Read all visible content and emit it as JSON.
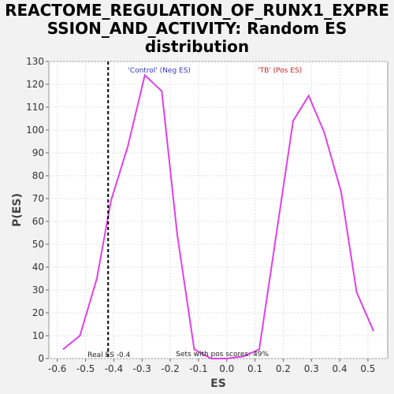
{
  "chart_data": {
    "type": "line",
    "title_lines": [
      "REACTOME_REGULATION_OF_RUNX1_EXPRE",
      "SSION_AND_ACTIVITY: Random ES",
      "distribution"
    ],
    "xlabel": "ES",
    "ylabel": "P(ES)",
    "xlim": [
      -0.63,
      0.57
    ],
    "ylim": [
      0,
      130
    ],
    "xticks": [
      -0.6,
      -0.5,
      -0.4,
      -0.3,
      -0.2,
      -0.1,
      0.0,
      0.1,
      0.2,
      0.3,
      0.4,
      0.5
    ],
    "xtick_labels": [
      "-0.6",
      "-0.5",
      "-0.4",
      "-0.3",
      "-0.2",
      "-0.1",
      "0.0",
      "0.1",
      "0.2",
      "0.3",
      "0.4",
      "0.5"
    ],
    "yticks": [
      0,
      10,
      20,
      30,
      40,
      50,
      60,
      70,
      80,
      90,
      100,
      110,
      120,
      130
    ],
    "ytick_labels": [
      "0",
      "10",
      "20",
      "30",
      "40",
      "50",
      "60",
      "70",
      "80",
      "90",
      "100",
      "110",
      "120",
      "130"
    ],
    "grid": true,
    "series": [
      {
        "color": "#e040e8",
        "x": [
          -0.58,
          -0.52,
          -0.46,
          -0.41,
          -0.35,
          -0.29,
          -0.23,
          -0.175,
          -0.115,
          -0.055,
          0.0,
          0.06,
          0.115,
          0.175,
          0.235,
          0.29,
          0.345,
          0.405,
          0.46,
          0.52
        ],
        "y": [
          4,
          10,
          35,
          69,
          93,
          124,
          117,
          54,
          4,
          0,
          0,
          1,
          4,
          54,
          104,
          115,
          99,
          73,
          29,
          12
        ]
      }
    ],
    "real_es_line": {
      "x": -0.42,
      "label": "Real ES -0.4"
    },
    "annotations": {
      "neg_label": "'Control' (Neg ES)",
      "pos_label": "'TB' (Pos ES)",
      "pos_scores_label": "Sets with pos scores: 49%"
    },
    "colors": {
      "line": "#e040e8",
      "neg_label": "#3333cc",
      "pos_label": "#cc2222",
      "grid": "#e0e0e0",
      "plot_bg": "#ffffff"
    }
  }
}
